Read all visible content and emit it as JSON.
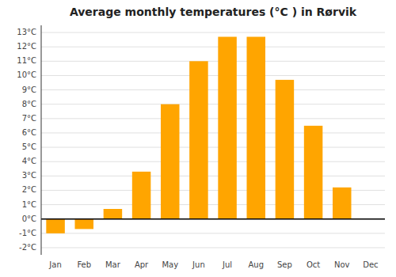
{
  "chart_data": {
    "type": "bar",
    "title": "Average monthly temperatures (°C ) in Rørvik",
    "categories": [
      "Jan",
      "Feb",
      "Mar",
      "Apr",
      "May",
      "Jun",
      "Jul",
      "Aug",
      "Sep",
      "Oct",
      "Nov",
      "Dec"
    ],
    "values": [
      -1.0,
      -0.7,
      0.7,
      3.3,
      8.0,
      11.0,
      12.7,
      12.7,
      9.7,
      6.5,
      2.2,
      0.0
    ],
    "color": "#FFA500",
    "ylim": [
      -2.5,
      13.5
    ],
    "yticks": [
      {
        "value": -2,
        "label": "-2°C"
      },
      {
        "value": -1,
        "label": "-1°C"
      },
      {
        "value": 0,
        "label": "0°C"
      },
      {
        "value": 1,
        "label": "1°C"
      },
      {
        "value": 2,
        "label": "2°C"
      },
      {
        "value": 3,
        "label": "3°C"
      },
      {
        "value": 4,
        "label": "4°C"
      },
      {
        "value": 5,
        "label": "5°C"
      },
      {
        "value": 6,
        "label": "6°C"
      },
      {
        "value": 7,
        "label": "7°C"
      },
      {
        "value": 8,
        "label": "8°C"
      },
      {
        "value": 9,
        "label": "9°C"
      },
      {
        "value": 10,
        "label": "10°C"
      },
      {
        "value": 11,
        "label": "11°C"
      },
      {
        "value": 12,
        "label": "12°C"
      },
      {
        "value": 13,
        "label": "13°C"
      }
    ],
    "grid": true
  }
}
